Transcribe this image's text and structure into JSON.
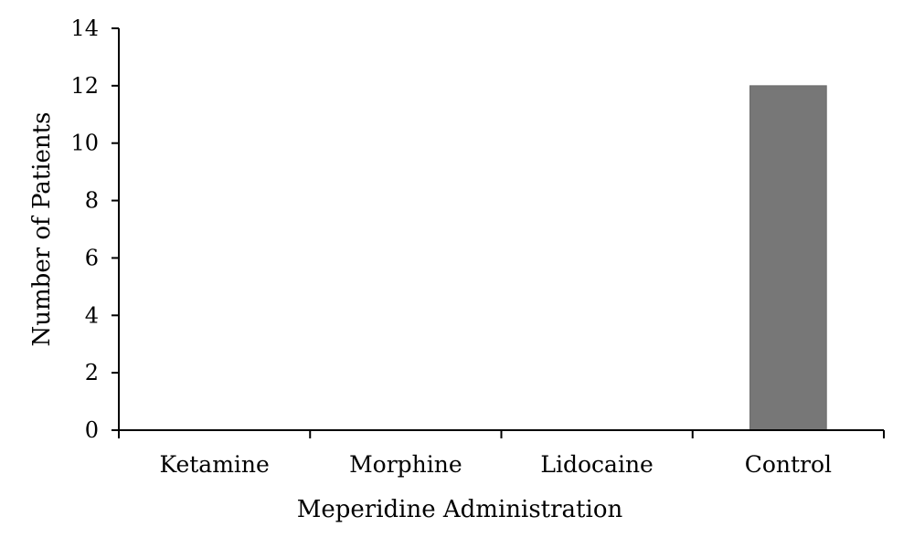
{
  "chart_data": {
    "type": "bar",
    "categories": [
      "Ketamine",
      "Morphine",
      "Lidocaine",
      "Control"
    ],
    "values": [
      0,
      0,
      0,
      12
    ],
    "title": "",
    "xlabel": "Meperidine Administration",
    "ylabel": "Number of Patients",
    "ylim": [
      0,
      14
    ],
    "yticks": [
      0,
      2,
      4,
      6,
      8,
      10,
      12,
      14
    ],
    "grid": false,
    "legend": "none",
    "bar_color": "#777777"
  }
}
